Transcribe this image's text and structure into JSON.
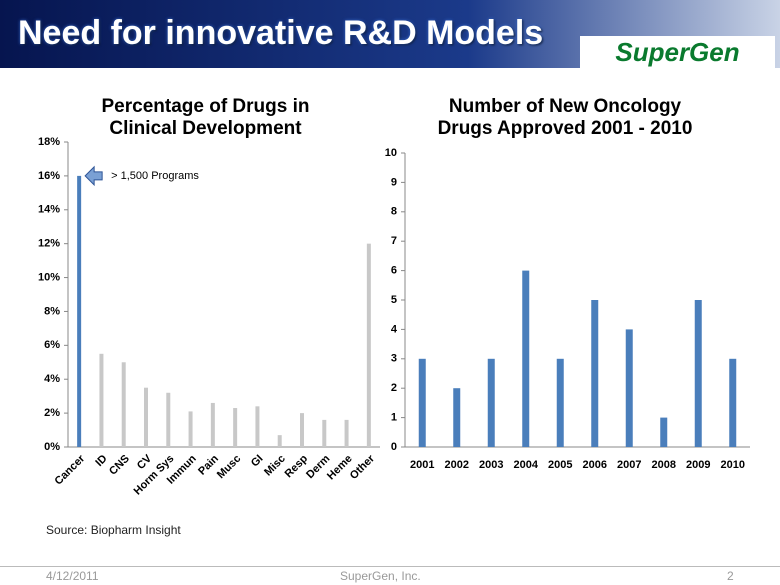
{
  "slide": {
    "title": "Need for innovative R&D Models",
    "logo": "SuperGen",
    "source": "Source: Biopharm Insight",
    "footer": {
      "date": "4/12/2011",
      "company": "SuperGen, Inc.",
      "page": "2"
    }
  },
  "chart_data": [
    {
      "type": "bar",
      "title": "Percentage of Drugs in Clinical Development",
      "categories": [
        "Cancer",
        "ID",
        "CNS",
        "CV",
        "Horm Sys",
        "Immun",
        "Pain",
        "Musc",
        "GI",
        "Misc",
        "Resp",
        "Derm",
        "Heme",
        "Other"
      ],
      "values": [
        16,
        5.5,
        5,
        3.5,
        3.2,
        2.1,
        2.6,
        2.3,
        2.4,
        0.7,
        2.0,
        1.6,
        1.6,
        12
      ],
      "colors": [
        "#4a7ebb",
        "#c8c8c8",
        "#c8c8c8",
        "#c8c8c8",
        "#c8c8c8",
        "#c8c8c8",
        "#c8c8c8",
        "#c8c8c8",
        "#c8c8c8",
        "#c8c8c8",
        "#c8c8c8",
        "#c8c8c8",
        "#c8c8c8",
        "#c8c8c8"
      ],
      "annotation": "> 1,500 Programs",
      "ylim": [
        0,
        18
      ],
      "yticks": [
        {
          "value": 0,
          "label": "0%"
        },
        {
          "value": 2,
          "label": "2%"
        },
        {
          "value": 4,
          "label": "4%"
        },
        {
          "value": 6,
          "label": "6%"
        },
        {
          "value": 8,
          "label": "8%"
        },
        {
          "value": 10,
          "label": "10%"
        },
        {
          "value": 12,
          "label": "12%"
        },
        {
          "value": 14,
          "label": "14%"
        },
        {
          "value": 16,
          "label": "16%"
        },
        {
          "value": 18,
          "label": "18%"
        }
      ],
      "grid": false
    },
    {
      "type": "bar",
      "title": "Number of New Oncology Drugs Approved 2001 - 2010",
      "categories": [
        "2001",
        "2002",
        "2003",
        "2004",
        "2005",
        "2006",
        "2007",
        "2008",
        "2009",
        "2010"
      ],
      "values": [
        3,
        2,
        3,
        6,
        3,
        5,
        4,
        1,
        5,
        3
      ],
      "color": "#4a7ebb",
      "ylim": [
        0,
        10
      ],
      "yticks": [
        0,
        1,
        2,
        3,
        4,
        5,
        6,
        7,
        8,
        9,
        10
      ],
      "grid": false
    }
  ]
}
